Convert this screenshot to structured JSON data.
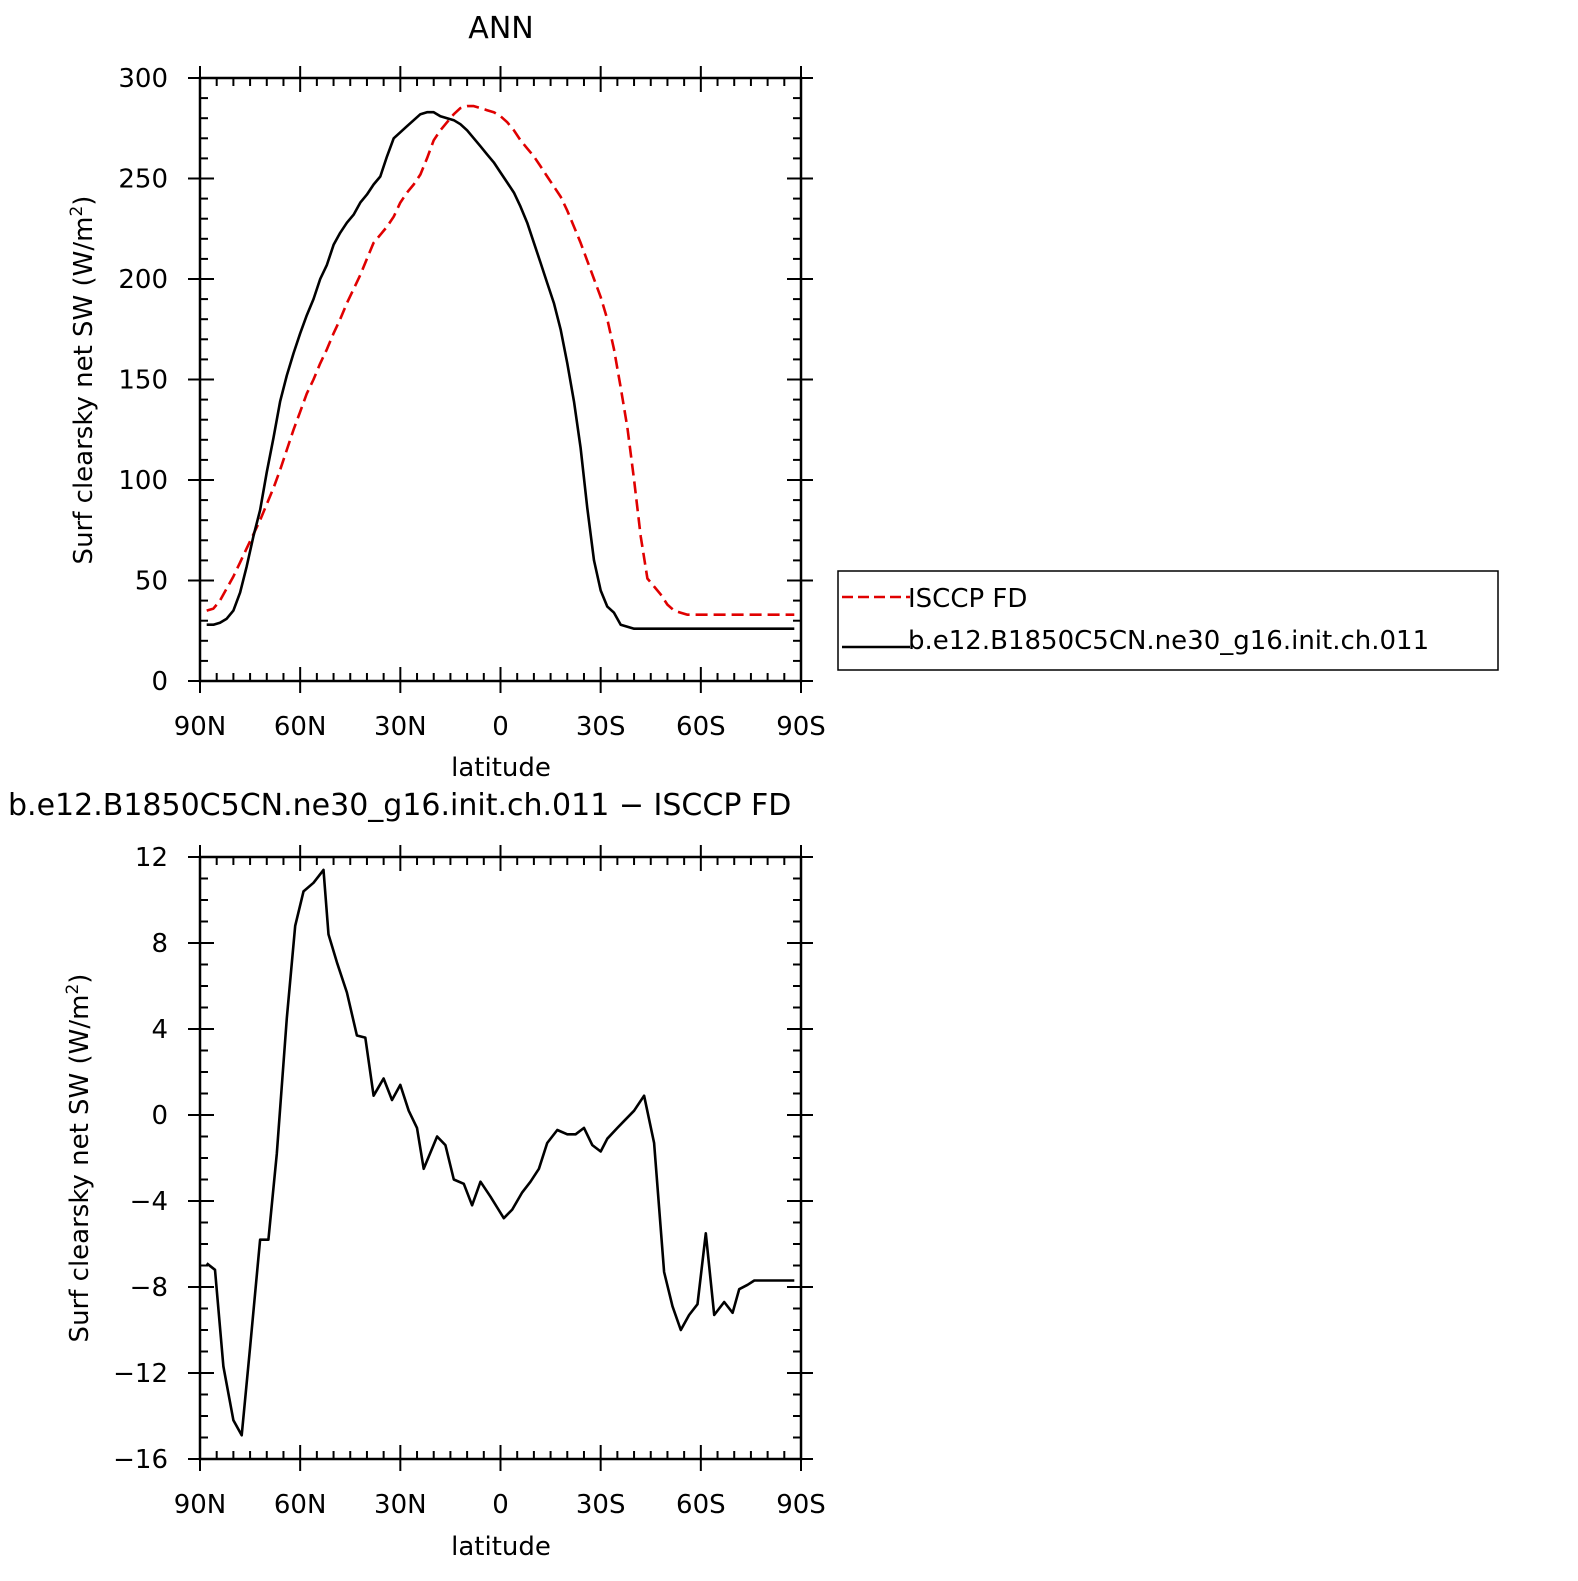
{
  "chart_data": [
    {
      "type": "line",
      "title": "ANN",
      "xlabel": "latitude",
      "ylabel": "Surf clearsky net SW (W/m",
      "ylabel_superscript": "2",
      "ylabel_suffix": ")",
      "x_ticks": [
        90,
        60,
        30,
        0,
        -30,
        -60,
        -90
      ],
      "x_tick_labels": [
        "90N",
        "60N",
        "30N",
        "0",
        "30S",
        "60S",
        "90S"
      ],
      "xlim": [
        90,
        -90
      ],
      "ylim": [
        0,
        300
      ],
      "y_ticks": [
        0,
        50,
        100,
        150,
        200,
        250,
        300
      ],
      "y_tick_labels": [
        "0",
        "50",
        "100",
        "150",
        "200",
        "250",
        "300"
      ],
      "legend_position": "right",
      "series": [
        {
          "name": "ISCCP FD",
          "color": "#e00000",
          "dash": true,
          "x": [
            88,
            86,
            84,
            82,
            80,
            78,
            76,
            74,
            72,
            70,
            68,
            66,
            64,
            62,
            60,
            58,
            56,
            54,
            52,
            50,
            48,
            46,
            44,
            42,
            40,
            38,
            36,
            34,
            32,
            30,
            28,
            26,
            24,
            22,
            20,
            18,
            16,
            14,
            12,
            10,
            8,
            6,
            4,
            2,
            0,
            -2,
            -4,
            -6,
            -8,
            -10,
            -12,
            -14,
            -16,
            -18,
            -20,
            -22,
            -24,
            -26,
            -28,
            -30,
            -32,
            -34,
            -36,
            -38,
            -40,
            -42,
            -44,
            -46,
            -48,
            -50,
            -52,
            -54,
            -56,
            -58,
            -60,
            -62,
            -64,
            -66,
            -68,
            -70,
            -72,
            -74,
            -76,
            -78,
            -80,
            -82,
            -84,
            -86,
            -88
          ],
          "values": [
            35,
            36,
            40,
            46,
            52,
            59,
            66,
            73,
            80,
            88,
            96,
            105,
            115,
            125,
            134,
            143,
            150,
            158,
            165,
            173,
            180,
            188,
            195,
            202,
            210,
            218,
            222,
            226,
            231,
            238,
            243,
            247,
            252,
            260,
            269,
            274,
            278,
            282,
            285,
            286,
            286,
            285,
            284,
            283,
            281,
            278,
            274,
            269,
            265,
            261,
            256,
            251,
            246,
            241,
            234,
            226,
            218,
            209,
            200,
            191,
            180,
            165,
            146,
            126,
            100,
            72,
            51,
            47,
            43,
            38,
            35,
            34,
            33,
            33,
            33,
            33,
            33,
            33,
            33,
            33,
            33,
            33,
            33,
            33,
            33,
            33,
            33,
            33,
            33
          ]
        },
        {
          "name": "b.e12.B1850C5CN.ne30_g16.init.ch.011",
          "color": "#000000",
          "dash": false,
          "x": [
            88,
            86,
            84,
            82,
            80,
            78,
            76,
            74,
            72,
            70,
            68,
            66,
            64,
            62,
            60,
            58,
            56,
            54,
            52,
            50,
            48,
            46,
            44,
            42,
            40,
            38,
            36,
            34,
            32,
            30,
            28,
            26,
            24,
            22,
            20,
            18,
            16,
            14,
            12,
            10,
            8,
            6,
            4,
            2,
            0,
            -2,
            -4,
            -6,
            -8,
            -10,
            -12,
            -14,
            -16,
            -18,
            -20,
            -22,
            -24,
            -26,
            -28,
            -30,
            -32,
            -34,
            -36,
            -38,
            -40,
            -42,
            -44,
            -46,
            -48,
            -50,
            -52,
            -54,
            -56,
            -58,
            -60,
            -62,
            -64,
            -66,
            -68,
            -70,
            -72,
            -74,
            -76,
            -78,
            -80,
            -82,
            -84,
            -86,
            -88
          ],
          "values": [
            28,
            28,
            29,
            31,
            35,
            44,
            57,
            72,
            85,
            104,
            121,
            139,
            152,
            163,
            173,
            182,
            190,
            200,
            207,
            217,
            223,
            228,
            232,
            238,
            242,
            247,
            251,
            261,
            270,
            273,
            276,
            279,
            282,
            283,
            283,
            281,
            280,
            279,
            277,
            274,
            270,
            266,
            262,
            258,
            253,
            248,
            243,
            236,
            228,
            218,
            208,
            198,
            188,
            175,
            158,
            139,
            116,
            86,
            60,
            45,
            37,
            34,
            28,
            27,
            26,
            26,
            26,
            26,
            26,
            26,
            26,
            26,
            26,
            26,
            26,
            26,
            26,
            26,
            26,
            26,
            26,
            26,
            26,
            26,
            26,
            26,
            26,
            26,
            26
          ]
        }
      ]
    },
    {
      "type": "line",
      "title": "b.e12.B1850C5CN.ne30_g16.init.ch.011 − ISCCP FD",
      "xlabel": "latitude",
      "ylabel": "Surf clearsky net SW (W/m",
      "ylabel_superscript": "2",
      "ylabel_suffix": ")",
      "x_ticks": [
        90,
        60,
        30,
        0,
        -30,
        -60,
        -90
      ],
      "x_tick_labels": [
        "90N",
        "60N",
        "30N",
        "0",
        "30S",
        "60S",
        "90S"
      ],
      "xlim": [
        90,
        -90
      ],
      "ylim": [
        -16,
        12
      ],
      "y_ticks": [
        -16,
        -12,
        -8,
        -4,
        0,
        4,
        8,
        12
      ],
      "y_tick_labels": [
        "−16",
        "−12",
        "−8",
        "−4",
        "0",
        "4",
        "8",
        "12"
      ],
      "series": [
        {
          "color": "#000000",
          "dash": false,
          "x": [
            88,
            85.5,
            83,
            80,
            77.5,
            75,
            72,
            69.5,
            67,
            64,
            61.5,
            59,
            56,
            53,
            51.5,
            49,
            46,
            43,
            40.5,
            38,
            35,
            32.5,
            30,
            27.5,
            25,
            23,
            19,
            16.5,
            14,
            11,
            8.5,
            6,
            3,
            1,
            -1,
            -3.5,
            -6.5,
            -9,
            -11.5,
            -14,
            -17,
            -20,
            -22.5,
            -25,
            -27.5,
            -30,
            -32,
            -35,
            -37.5,
            -40,
            -43,
            -46,
            -49,
            -51.5,
            -54,
            -56.5,
            -59,
            -61.5,
            -64,
            -67,
            -69.5,
            -71.5,
            -74,
            -76,
            -79,
            -81.5,
            -84,
            -88
          ],
          "values": [
            -6.9,
            -7.2,
            -11.7,
            -14.2,
            -14.9,
            -10.8,
            -5.8,
            -5.8,
            -1.8,
            4.5,
            8.8,
            10.4,
            10.8,
            11.4,
            8.4,
            7.1,
            5.7,
            3.7,
            3.6,
            0.9,
            1.7,
            0.7,
            1.4,
            0.2,
            -0.6,
            -2.5,
            -1.0,
            -1.4,
            -3.0,
            -3.2,
            -4.2,
            -3.1,
            -3.8,
            -4.3,
            -4.8,
            -4.4,
            -3.6,
            -3.1,
            -2.5,
            -1.3,
            -0.7,
            -0.9,
            -0.9,
            -0.6,
            -1.4,
            -1.7,
            -1.1,
            -0.6,
            -0.2,
            0.2,
            0.9,
            -1.3,
            -7.3,
            -8.9,
            -10.0,
            -9.3,
            -8.8,
            -5.5,
            -9.3,
            -8.7,
            -9.2,
            -8.1,
            -7.9,
            -7.7,
            -7.7,
            -7.7,
            -7.7,
            -7.7
          ]
        }
      ]
    }
  ]
}
